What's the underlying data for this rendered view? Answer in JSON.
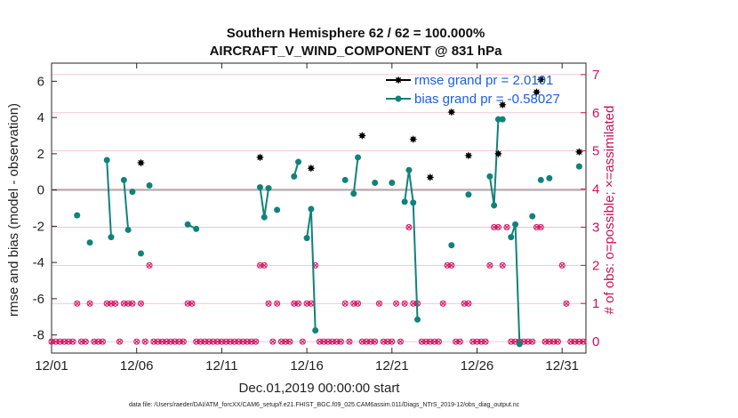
{
  "chart_data": {
    "type": "scatter",
    "title": "Southern Hemisphere 62 / 62 = 100.000%",
    "subtitle": "AIRCRAFT_V_WIND_COMPONENT @ 831 hPa",
    "xlabel": "Dec.01,2019 00:00:00 start",
    "ylabel": "rmse and bias (model - observation)",
    "y2label": "# of obs: o=possible; ×=assimilated",
    "footnote": "data file: /Users/raeder/DAI/ATM_forcXX/CAM6_setup/f.e21.FHIST_BGC.f09_025.CAM6assim.011/Diags_NTrS_2019-12/obs_diag_output.nc",
    "xlim": [
      1,
      32.4
    ],
    "ylim": [
      -9,
      7
    ],
    "y2lim": [
      -0.3,
      7.3
    ],
    "xticks": [
      {
        "value": 1,
        "label": "12/01"
      },
      {
        "value": 6,
        "label": "12/06"
      },
      {
        "value": 11,
        "label": "12/11"
      },
      {
        "value": 16,
        "label": "12/16"
      },
      {
        "value": 21,
        "label": "12/21"
      },
      {
        "value": 26,
        "label": "12/26"
      },
      {
        "value": 31,
        "label": "12/31"
      }
    ],
    "yticks": [
      {
        "value": 6,
        "label": "6"
      },
      {
        "value": 4,
        "label": "4"
      },
      {
        "value": 2,
        "label": "2"
      },
      {
        "value": 0,
        "label": "0"
      },
      {
        "value": -2,
        "label": "-2"
      },
      {
        "value": -4,
        "label": "-4"
      },
      {
        "value": -6,
        "label": "-6"
      },
      {
        "value": -8,
        "label": "-8"
      }
    ],
    "y2ticks": [
      {
        "value": 0,
        "label": "0"
      },
      {
        "value": 1,
        "label": "1"
      },
      {
        "value": 2,
        "label": "2"
      },
      {
        "value": 3,
        "label": "3"
      },
      {
        "value": 4,
        "label": "4"
      },
      {
        "value": 5,
        "label": "5"
      },
      {
        "value": 6,
        "label": "6"
      },
      {
        "value": 7,
        "label": "7"
      }
    ],
    "colors": {
      "rmse": "#000000",
      "bias": "#10827a",
      "obs": "#d21563",
      "zero_line": "#b0b0b0",
      "grid": "#f2b6cc",
      "right_axis": "#c8105a",
      "legend_text": "#1a5fe0"
    },
    "legend": [
      {
        "label": "rmse grand pr = 2.0101",
        "series": "rmse"
      },
      {
        "label": "bias grand pr = -0.58027",
        "series": "bias"
      }
    ],
    "legend_position": "top-right",
    "series": [
      {
        "name": "rmse",
        "x": [
          6.25,
          13.25,
          16.25,
          19.25,
          22.25,
          23.25,
          24.5,
          25.5,
          27.25,
          27.5,
          29.5,
          29.75,
          32.0
        ],
        "y": [
          1.5,
          1.8,
          1.2,
          3.0,
          2.8,
          0.7,
          4.3,
          1.9,
          2.0,
          4.7,
          5.4,
          6.1,
          2.1
        ]
      },
      {
        "name": "bias",
        "segments": [
          {
            "x": [
              2.5
            ],
            "y": [
              -1.4
            ]
          },
          {
            "x": [
              3.25
            ],
            "y": [
              -2.9
            ]
          },
          {
            "x": [
              4.25,
              4.5
            ],
            "y": [
              1.65,
              -2.6
            ]
          },
          {
            "x": [
              5.25,
              5.5
            ],
            "y": [
              0.55,
              -2.2
            ]
          },
          {
            "x": [
              5.75
            ],
            "y": [
              -0.1
            ]
          },
          {
            "x": [
              6.25
            ],
            "y": [
              -3.5
            ]
          },
          {
            "x": [
              6.75
            ],
            "y": [
              0.25
            ]
          },
          {
            "x": [
              9.0,
              9.5
            ],
            "y": [
              -1.9,
              -2.15
            ]
          },
          {
            "x": [
              13.25,
              13.5,
              13.75
            ],
            "y": [
              0.15,
              -1.5,
              0.1
            ]
          },
          {
            "x": [
              14.25
            ],
            "y": [
              -1.1
            ]
          },
          {
            "x": [
              15.25,
              15.5
            ],
            "y": [
              0.75,
              1.55
            ]
          },
          {
            "x": [
              16.0,
              16.25,
              16.5
            ],
            "y": [
              -2.65,
              -1.05,
              -7.75
            ]
          },
          {
            "x": [
              18.25
            ],
            "y": [
              0.55
            ]
          },
          {
            "x": [
              18.75,
              19.0
            ],
            "y": [
              -0.2,
              1.8
            ]
          },
          {
            "x": [
              20.0
            ],
            "y": [
              0.4
            ]
          },
          {
            "x": [
              21.0
            ],
            "y": [
              0.4
            ]
          },
          {
            "x": [
              21.75,
              22.0,
              22.25,
              22.5
            ],
            "y": [
              -0.65,
              1.1,
              -0.7,
              -7.15
            ]
          },
          {
            "x": [
              24.5
            ],
            "y": [
              -3.05
            ]
          },
          {
            "x": [
              25.5
            ],
            "y": [
              -0.25
            ]
          },
          {
            "x": [
              26.75,
              27.0,
              27.25,
              27.5
            ],
            "y": [
              0.75,
              -0.85,
              3.9,
              3.9
            ]
          },
          {
            "x": [
              28.0,
              28.25,
              28.5
            ],
            "y": [
              -2.6,
              -1.9,
              -8.5
            ]
          },
          {
            "x": [
              29.25
            ],
            "y": [
              -1.45
            ]
          },
          {
            "x": [
              29.75
            ],
            "y": [
              0.55
            ]
          },
          {
            "x": [
              30.25
            ],
            "y": [
              0.65
            ]
          },
          {
            "x": [
              32.0
            ],
            "y": [
              1.3
            ]
          }
        ]
      },
      {
        "name": "obs_count",
        "x": [
          1.0,
          1.25,
          1.5,
          1.75,
          2.0,
          2.25,
          2.5,
          2.75,
          3.0,
          3.25,
          3.5,
          3.75,
          4.0,
          4.25,
          4.5,
          4.75,
          5.0,
          5.25,
          5.5,
          5.75,
          6.0,
          6.25,
          6.5,
          6.75,
          7.0,
          7.25,
          7.5,
          7.75,
          8.0,
          8.25,
          8.5,
          8.75,
          9.0,
          9.25,
          9.5,
          9.75,
          10.0,
          10.25,
          10.5,
          10.75,
          11.0,
          11.25,
          11.5,
          11.75,
          12.0,
          12.25,
          12.5,
          12.75,
          13.0,
          13.25,
          13.5,
          13.75,
          14.0,
          14.25,
          14.5,
          14.75,
          15.0,
          15.25,
          15.5,
          15.75,
          16.0,
          16.25,
          16.5,
          16.75,
          17.0,
          17.25,
          17.5,
          17.75,
          18.0,
          18.25,
          18.5,
          18.75,
          19.0,
          19.25,
          19.5,
          19.75,
          20.0,
          20.25,
          20.5,
          20.75,
          21.0,
          21.25,
          21.5,
          21.75,
          22.0,
          22.25,
          22.5,
          22.75,
          23.0,
          23.25,
          23.5,
          23.75,
          24.0,
          24.25,
          24.5,
          24.75,
          25.0,
          25.25,
          25.5,
          25.75,
          26.0,
          26.25,
          26.5,
          26.75,
          27.0,
          27.25,
          27.5,
          27.75,
          28.0,
          28.25,
          28.5,
          28.75,
          29.0,
          29.25,
          29.5,
          29.75,
          30.0,
          30.25,
          30.5,
          30.75,
          31.0,
          31.25,
          31.5,
          31.75,
          32.0,
          32.25
        ],
        "y": [
          0,
          0,
          0,
          0,
          0,
          0,
          1,
          0,
          0,
          1,
          0,
          0,
          0,
          1,
          1,
          1,
          0,
          1,
          1,
          1,
          0,
          1,
          0,
          2,
          0,
          0,
          0,
          0,
          0,
          0,
          0,
          0,
          1,
          1,
          0,
          0,
          0,
          0,
          0,
          0,
          0,
          0,
          0,
          0,
          0,
          0,
          0,
          0,
          0,
          2,
          2,
          1,
          0,
          1,
          0,
          0,
          0,
          1,
          1,
          0,
          1,
          1,
          2,
          0,
          0,
          0,
          0,
          0,
          0,
          1,
          0,
          1,
          1,
          0,
          0,
          0,
          0,
          1,
          0,
          0,
          0,
          1,
          0,
          1,
          3,
          1,
          1,
          0,
          0,
          0,
          0,
          0,
          1,
          2,
          2,
          0,
          0,
          1,
          1,
          0,
          0,
          0,
          0,
          2,
          3,
          3,
          2,
          3,
          0,
          0,
          0,
          0,
          0,
          0,
          3,
          3,
          0,
          0,
          0,
          0,
          2,
          1,
          0,
          0,
          0,
          0
        ]
      }
    ]
  }
}
